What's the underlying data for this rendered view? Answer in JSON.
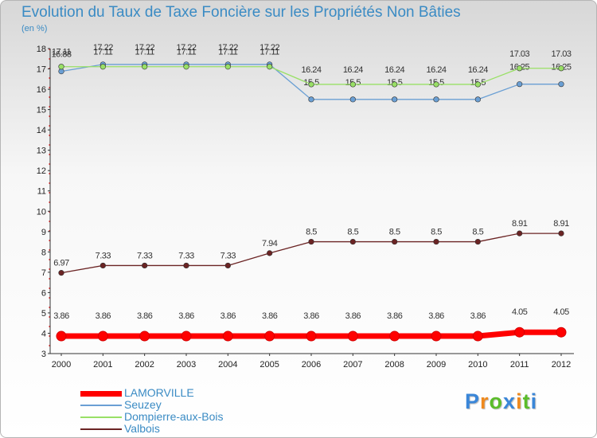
{
  "chart_data": {
    "type": "line",
    "title": "Evolution du Taux de Taxe Foncière sur les Propriétés Non Bâties",
    "subtitle": "(en %)",
    "xlabel": "",
    "ylabel": "",
    "x": [
      "2000",
      "2001",
      "2002",
      "2003",
      "2004",
      "2005",
      "2006",
      "2007",
      "2008",
      "2009",
      "2010",
      "2011",
      "2012"
    ],
    "y_ticks": [
      "3",
      "4",
      "5",
      "6",
      "7",
      "8",
      "9",
      "10",
      "11",
      "12",
      "13",
      "14",
      "15",
      "16",
      "17",
      "18"
    ],
    "ylim": [
      3,
      18
    ],
    "grid": false,
    "legend_position": "bottom-left",
    "series": [
      {
        "name": "LAMORVILLE",
        "color": "#ff0000",
        "values": [
          3.86,
          3.86,
          3.86,
          3.86,
          3.86,
          3.86,
          3.86,
          3.86,
          3.86,
          3.86,
          3.86,
          4.05,
          4.05
        ],
        "labels": [
          "3.86",
          "3.86",
          "3.86",
          "3.86",
          "3.86",
          "3.86",
          "3.86",
          "3.86",
          "3.86",
          "3.86",
          "3.86",
          "4.05",
          "4.05"
        ]
      },
      {
        "name": "Seuzey",
        "color": "#6a9fd4",
        "values": [
          16.88,
          17.22,
          17.22,
          17.22,
          17.22,
          17.22,
          15.5,
          15.5,
          15.5,
          15.5,
          15.5,
          16.25,
          16.25
        ],
        "labels": [
          "16.88",
          "17.22",
          "17.22",
          "17.22",
          "17.22",
          "17.22",
          "15.5",
          "15.5",
          "15.5",
          "15.5",
          "15.5",
          "16.25",
          "16.25"
        ]
      },
      {
        "name": "Dompierre-aux-Bois",
        "color": "#99e066",
        "values": [
          17.11,
          17.11,
          17.11,
          17.11,
          17.11,
          17.11,
          16.24,
          16.24,
          16.24,
          16.24,
          16.24,
          17.03,
          17.03
        ],
        "labels": [
          "17.11",
          "17.11",
          "17.11",
          "17.11",
          "17.11",
          "17.11",
          "16.24",
          "16.24",
          "16.24",
          "16.24",
          "16.24",
          "17.03",
          "17.03"
        ]
      },
      {
        "name": "Valbois",
        "color": "#6b2424",
        "values": [
          6.97,
          7.33,
          7.33,
          7.33,
          7.33,
          7.94,
          8.5,
          8.5,
          8.5,
          8.5,
          8.5,
          8.91,
          8.91
        ],
        "labels": [
          "6.97",
          "7.33",
          "7.33",
          "7.33",
          "7.33",
          "7.94",
          "8.5",
          "8.5",
          "8.5",
          "8.5",
          "8.5",
          "8.91",
          "8.91"
        ]
      }
    ]
  },
  "logo": {
    "text": "Proxiti",
    "letters": [
      {
        "ch": "P",
        "color": "#3a86d8"
      },
      {
        "ch": "r",
        "color": "#ef8a1e"
      },
      {
        "ch": "o",
        "color": "#5bbd2a"
      },
      {
        "ch": "x",
        "color": "#3a86d8"
      },
      {
        "ch": "i",
        "color": "#ef8a1e"
      },
      {
        "ch": "t",
        "color": "#5bbd2a"
      },
      {
        "ch": "i",
        "color": "#3a86d8"
      }
    ]
  }
}
